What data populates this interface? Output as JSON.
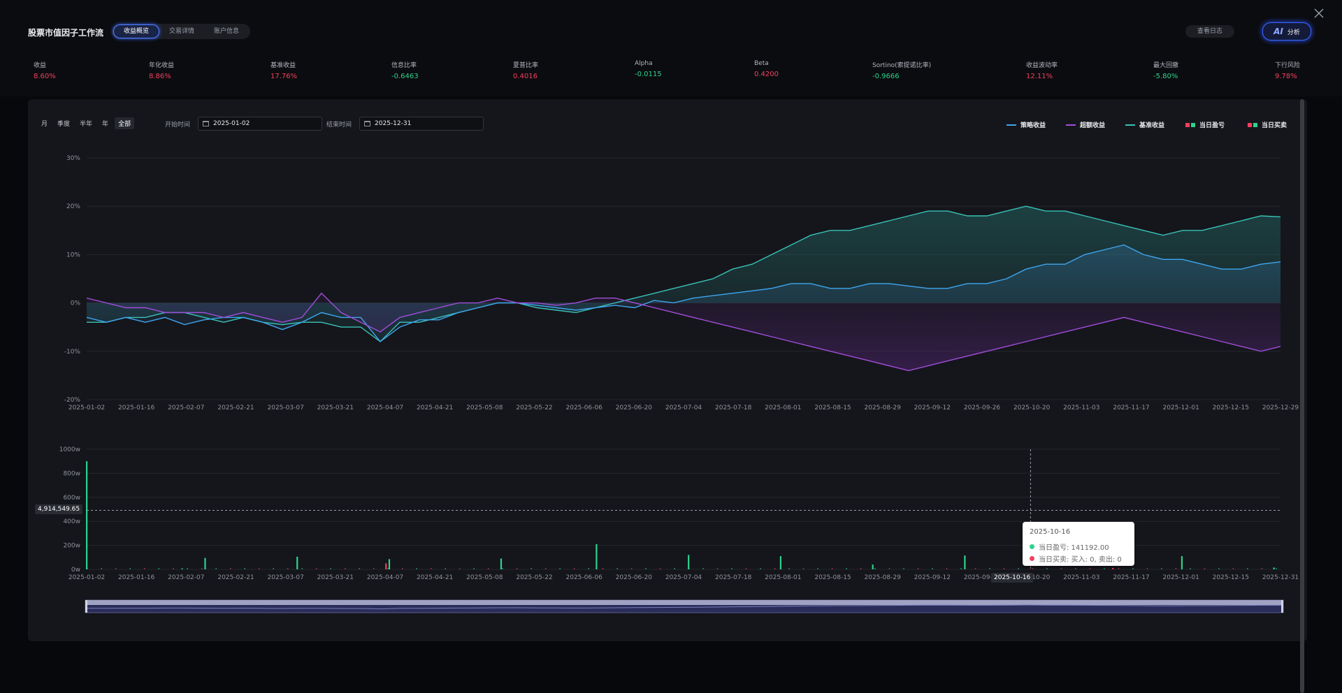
{
  "header": {
    "title": "股票市值因子工作流",
    "tabs": [
      {
        "label": "收益概览",
        "active": true
      },
      {
        "label": "交易详情",
        "active": false
      },
      {
        "label": "账户信息",
        "active": false
      }
    ],
    "log_label": "查看日志",
    "ai_icon_text": "AI",
    "ai_label": "分析"
  },
  "metrics": [
    {
      "label": "收益",
      "value": "8.60%",
      "color": "red"
    },
    {
      "label": "年化收益",
      "value": "8.86%",
      "color": "red"
    },
    {
      "label": "基准收益",
      "value": "17.76%",
      "color": "red"
    },
    {
      "label": "信息比率",
      "value": "-0.6463",
      "color": "green"
    },
    {
      "label": "夏普比率",
      "value": "0.4016",
      "color": "red"
    },
    {
      "label": "Alpha",
      "value": "-0.0115",
      "color": "green"
    },
    {
      "label": "Beta",
      "value": "0.4200",
      "color": "red"
    },
    {
      "label": "Sortino(索提诺比率)",
      "value": "-0.9666",
      "color": "green"
    },
    {
      "label": "收益波动率",
      "value": "12.11%",
      "color": "red"
    },
    {
      "label": "最大回撤",
      "value": "-5.80%",
      "color": "green"
    },
    {
      "label": "下行风险",
      "value": "9.78%",
      "color": "red"
    }
  ],
  "controls": {
    "ranges": [
      {
        "label": "月",
        "active": false
      },
      {
        "label": "季度",
        "active": false
      },
      {
        "label": "半年",
        "active": false
      },
      {
        "label": "年",
        "active": false
      },
      {
        "label": "全部",
        "active": true
      }
    ],
    "start_label": "开始时间",
    "start_value": "2025-01-02",
    "end_label": "结束时间",
    "end_value": "2025-12-31"
  },
  "legend": {
    "strategy": "策略收益",
    "excess": "超额收益",
    "benchmark": "基准收益",
    "daily_pnl": "当日盈亏",
    "daily_trade": "当日买卖"
  },
  "colors": {
    "strategy": "#3ea6f0",
    "excess": "#a24ddc",
    "benchmark": "#39c2b8",
    "up": "#2dd38d",
    "down": "#f0405e"
  },
  "chart_data": [
    {
      "type": "line",
      "ylim": [
        -20,
        30
      ],
      "y_ticks": [
        "30%",
        "20%",
        "10%",
        "0%",
        "-10%",
        "-20%"
      ],
      "x_ticks": [
        "2025-01-02",
        "2025-01-16",
        "2025-02-07",
        "2025-02-21",
        "2025-03-07",
        "2025-03-21",
        "2025-04-07",
        "2025-04-21",
        "2025-05-08",
        "2025-05-22",
        "2025-06-06",
        "2025-06-20",
        "2025-07-04",
        "2025-07-18",
        "2025-08-01",
        "2025-08-15",
        "2025-08-29",
        "2025-09-12",
        "2025-09-26",
        "2025-10-20",
        "2025-11-03",
        "2025-11-17",
        "2025-12-01",
        "2025-12-15",
        "2025-12-29"
      ],
      "series": [
        {
          "name": "策略收益",
          "key": "strategy",
          "values": [
            -3,
            -4,
            -3,
            -4,
            -3,
            -4.5,
            -3.5,
            -3,
            -3,
            -4,
            -5.5,
            -4,
            -2,
            -3,
            -3,
            -8,
            -5,
            -3.5,
            -3.5,
            -2,
            -1,
            0,
            0,
            -0.5,
            -1,
            -1.5,
            -1,
            -0.5,
            -1,
            0.5,
            0,
            1,
            1.5,
            2,
            2.5,
            3,
            4,
            4,
            3,
            3,
            4,
            4,
            3.5,
            3,
            3,
            4,
            4,
            5,
            7,
            8,
            8,
            10,
            11,
            12,
            10,
            9,
            9,
            8,
            7,
            7,
            8,
            8.5
          ]
        },
        {
          "name": "超额收益",
          "key": "excess",
          "values": [
            1,
            0,
            -1,
            -1,
            -2,
            -2,
            -2,
            -3,
            -2,
            -3,
            -4,
            -3,
            2,
            -2,
            -4,
            -6,
            -3,
            -2,
            -1,
            0,
            0,
            1,
            0,
            0,
            -0.5,
            0,
            1,
            1,
            0,
            -1,
            -2,
            -3,
            -4,
            -5,
            -6,
            -7,
            -8,
            -9,
            -10,
            -11,
            -12,
            -13,
            -14,
            -13,
            -12,
            -11,
            -10,
            -9,
            -8,
            -7,
            -6,
            -5,
            -4,
            -3,
            -4,
            -5,
            -6,
            -7,
            -8,
            -9,
            -10,
            -9
          ]
        },
        {
          "name": "基准收益",
          "key": "benchmark",
          "values": [
            -4,
            -4,
            -3,
            -3,
            -2,
            -2,
            -3,
            -4,
            -3,
            -4,
            -4.5,
            -4,
            -4,
            -5,
            -5,
            -8,
            -4,
            -4,
            -3,
            -2,
            -1,
            0,
            0,
            -1,
            -1.5,
            -2,
            -1,
            0,
            1,
            2,
            3,
            4,
            5,
            7,
            8,
            10,
            12,
            14,
            15,
            15,
            16,
            17,
            18,
            19,
            19,
            18,
            18,
            19,
            20,
            19,
            19,
            18,
            17,
            16,
            15,
            14,
            15,
            15,
            16,
            17,
            18,
            17.8
          ]
        }
      ]
    },
    {
      "type": "bar",
      "ylim": [
        0,
        1000
      ],
      "y_ticks": [
        "1000w",
        "800w",
        "600w",
        "400w",
        "200w",
        "0w"
      ],
      "x_ticks": [
        "2025-01-02",
        "2025-01-16",
        "2025-02-07",
        "2025-02-21",
        "2025-03-07",
        "2025-03-21",
        "2025-04-07",
        "2025-04-21",
        "2025-05-08",
        "2025-05-22",
        "2025-06-06",
        "2025-06-20",
        "2025-07-04",
        "2025-07-18",
        "2025-08-01",
        "2025-08-15",
        "2025-08-29",
        "2025-09-12",
        "2025-09-26",
        "2025-10-20",
        "2025-11-03",
        "2025-11-17",
        "2025-12-01",
        "2025-12-15",
        "2025-12-31"
      ],
      "bars": [
        {
          "date": "2025-01-02",
          "value": 900,
          "dir": "up"
        },
        {
          "date": "2025-01-31",
          "value": 8,
          "dir": "up"
        },
        {
          "date": "2025-02-07",
          "value": 95,
          "dir": "up"
        },
        {
          "date": "2025-03-07",
          "value": 105,
          "dir": "up"
        },
        {
          "date": "2025-04-03",
          "value": 50,
          "dir": "down"
        },
        {
          "date": "2025-04-04",
          "value": 85,
          "dir": "up"
        },
        {
          "date": "2025-05-08",
          "value": 90,
          "dir": "up"
        },
        {
          "date": "2025-06-06",
          "value": 210,
          "dir": "up"
        },
        {
          "date": "2025-07-04",
          "value": 120,
          "dir": "up"
        },
        {
          "date": "2025-08-01",
          "value": 110,
          "dir": "up"
        },
        {
          "date": "2025-08-29",
          "value": 40,
          "dir": "up"
        },
        {
          "date": "2025-09-26",
          "value": 115,
          "dir": "up"
        },
        {
          "date": "2025-11-10",
          "value": 12,
          "dir": "down"
        },
        {
          "date": "2025-12-01",
          "value": 110,
          "dir": "up"
        },
        {
          "date": "2025-12-29",
          "value": 15,
          "dir": "up"
        }
      ],
      "crosshair_value": "4,914,549.65",
      "crosshair_date": "2025-10-16"
    }
  ],
  "tooltip": {
    "date": "2025-10-16",
    "pnl": "当日盈亏: 141192.00",
    "trade": "当日买卖: 买入: 0, 卖出: 0"
  }
}
